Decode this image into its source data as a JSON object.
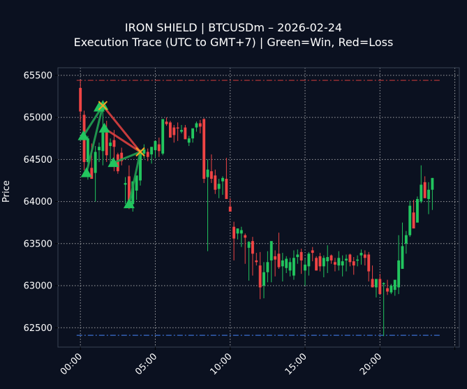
{
  "header": {
    "title_line1": "IRON SHIELD | BTCUSDm – 2026-02-24",
    "title_line2": "Execution Trace (UTC to GMT+7) | Green=Win, Red=Loss"
  },
  "colors": {
    "background": "#0b1120",
    "axes_border": "#3a4454",
    "grid": "#c8c8c8",
    "up": "#22c55e",
    "down": "#ef4444",
    "win_line": "#22a052",
    "loss_line": "#dc4040",
    "exit_marker": "#f5a623",
    "upper_level": "#c03838",
    "lower_level": "#3b6fd0",
    "text": "#ffffff"
  },
  "chart_data": {
    "type": "candlestick",
    "title": "IRON SHIELD | BTCUSDm – 2026-02-24",
    "subtitle": "Execution Trace (UTC to GMT+7) | Green=Win, Red=Loss",
    "xlabel": "",
    "ylabel": "Price",
    "ylim": [
      62270,
      65590
    ],
    "xlim_hours": [
      -1.5,
      25.3
    ],
    "x_ticks": [
      {
        "h": 0,
        "label": "00:00"
      },
      {
        "h": 5,
        "label": "05:00"
      },
      {
        "h": 10,
        "label": "10:00"
      },
      {
        "h": 15,
        "label": "15:00"
      },
      {
        "h": 20,
        "label": "20:00"
      }
    ],
    "y_ticks": [
      62500,
      63000,
      63500,
      64000,
      64500,
      65000,
      65500
    ],
    "grid": true,
    "reference_lines": [
      {
        "name": "upper-level",
        "price": 65440,
        "style": "dashdot",
        "color": "#c03838",
        "from_h": -0.25,
        "to_h": 24.0
      },
      {
        "name": "lower-level",
        "price": 62410,
        "style": "dashdot",
        "color": "#3b6fd0",
        "from_h": -0.25,
        "to_h": 24.0
      }
    ],
    "candle_interval_hours": 0.25,
    "candles_note": "[hour, open, high, low, close]",
    "candles": [
      [
        0.0,
        65350,
        65440,
        64960,
        65070
      ],
      [
        0.25,
        65030,
        65080,
        64370,
        64470
      ],
      [
        0.5,
        64470,
        64780,
        64260,
        64750
      ],
      [
        0.75,
        64400,
        64690,
        64320,
        64270
      ],
      [
        1.0,
        64340,
        64660,
        64000,
        64590
      ],
      [
        1.25,
        64610,
        64700,
        64470,
        64650
      ],
      [
        1.5,
        64600,
        65090,
        64430,
        64820
      ],
      [
        1.75,
        64820,
        64960,
        64470,
        64550
      ],
      [
        2.0,
        64660,
        64750,
        64460,
        64700
      ],
      [
        2.25,
        64730,
        64850,
        64360,
        64650
      ],
      [
        2.5,
        64560,
        64580,
        64330,
        64360
      ],
      [
        2.75,
        64580,
        64640,
        64430,
        64480
      ],
      [
        3.0,
        64200,
        64290,
        63970,
        64220
      ],
      [
        3.25,
        64300,
        64430,
        63910,
        63990
      ],
      [
        3.5,
        63970,
        64020,
        63880,
        64240
      ],
      [
        3.75,
        64130,
        64260,
        64020,
        64310
      ],
      [
        4.0,
        64250,
        64620,
        64190,
        64590
      ],
      [
        4.25,
        64570,
        64680,
        64510,
        64620
      ],
      [
        4.5,
        64590,
        64630,
        64480,
        64530
      ],
      [
        4.75,
        64560,
        64640,
        64450,
        64650
      ],
      [
        5.0,
        64610,
        64710,
        64520,
        64720
      ],
      [
        5.25,
        64680,
        64760,
        64530,
        64600
      ],
      [
        5.5,
        64570,
        64920,
        64550,
        64980
      ],
      [
        5.75,
        64950,
        65000,
        64900,
        64920
      ],
      [
        6.0,
        64940,
        64960,
        64780,
        64760
      ],
      [
        6.25,
        64880,
        64910,
        64700,
        64790
      ],
      [
        6.5,
        64880,
        64940,
        64720,
        64870
      ],
      [
        6.75,
        64830,
        64910,
        64810,
        64850
      ],
      [
        7.0,
        64880,
        64910,
        64800,
        64740
      ],
      [
        7.25,
        64700,
        64780,
        64660,
        64750
      ],
      [
        7.5,
        64750,
        64860,
        64700,
        64870
      ],
      [
        7.75,
        64880,
        64950,
        64830,
        64930
      ],
      [
        8.0,
        64930,
        64970,
        64810,
        64890
      ],
      [
        8.25,
        64980,
        64990,
        64220,
        64270
      ],
      [
        8.5,
        64290,
        64500,
        63410,
        64380
      ],
      [
        8.75,
        64360,
        64560,
        64220,
        64270
      ],
      [
        9.0,
        64310,
        64380,
        64090,
        64140
      ],
      [
        9.25,
        64150,
        64270,
        64040,
        64210
      ],
      [
        9.5,
        64240,
        64300,
        64080,
        64280
      ],
      [
        9.75,
        64270,
        64520,
        64140,
        64030
      ],
      [
        10.0,
        63940,
        64040,
        63920,
        63880
      ],
      [
        10.25,
        63700,
        63760,
        63300,
        63560
      ],
      [
        10.5,
        63620,
        63680,
        63550,
        63680
      ],
      [
        10.75,
        63620,
        63700,
        63460,
        63660
      ],
      [
        11.0,
        63600,
        63620,
        63260,
        63570
      ],
      [
        11.25,
        63450,
        63530,
        63060,
        63520
      ],
      [
        11.5,
        63530,
        63580,
        63120,
        63380
      ],
      [
        11.75,
        63300,
        63390,
        63240,
        63280
      ],
      [
        12.0,
        63240,
        63400,
        62840,
        62980
      ],
      [
        12.25,
        63000,
        63280,
        62850,
        63160
      ],
      [
        12.5,
        63160,
        63410,
        63040,
        63280
      ],
      [
        12.75,
        63300,
        63500,
        63040,
        63530
      ],
      [
        13.0,
        63350,
        63420,
        63110,
        63310
      ],
      [
        13.25,
        63380,
        63630,
        63200,
        63220
      ],
      [
        13.5,
        63230,
        63390,
        63050,
        63300
      ],
      [
        13.75,
        63210,
        63350,
        63150,
        63320
      ],
      [
        14.0,
        63180,
        63330,
        63110,
        63280
      ],
      [
        14.25,
        63120,
        63420,
        63070,
        63330
      ],
      [
        14.5,
        63340,
        63430,
        63260,
        63370
      ],
      [
        14.75,
        63400,
        63440,
        63140,
        63300
      ],
      [
        15.0,
        63180,
        63320,
        63000,
        63250
      ],
      [
        15.25,
        63230,
        63400,
        63120,
        63380
      ],
      [
        15.5,
        63420,
        63460,
        63290,
        63390
      ],
      [
        15.75,
        63330,
        63350,
        63180,
        63180
      ],
      [
        16.0,
        63350,
        63390,
        63170,
        63230
      ],
      [
        16.25,
        63230,
        63360,
        63100,
        63330
      ],
      [
        16.5,
        63290,
        63480,
        63150,
        63340
      ],
      [
        16.75,
        63360,
        63370,
        63260,
        63300
      ],
      [
        17.0,
        63280,
        63330,
        63170,
        63250
      ],
      [
        17.25,
        63240,
        63410,
        63180,
        63330
      ],
      [
        17.5,
        63240,
        63360,
        63110,
        63290
      ],
      [
        17.75,
        63300,
        63370,
        63170,
        63320
      ],
      [
        18.0,
        63370,
        63380,
        63230,
        63280
      ],
      [
        18.25,
        63290,
        63340,
        63130,
        63240
      ],
      [
        18.5,
        63300,
        63360,
        63230,
        63310
      ],
      [
        18.75,
        63360,
        63430,
        63250,
        63390
      ],
      [
        19.0,
        63370,
        63420,
        63240,
        63330
      ],
      [
        19.25,
        63370,
        63400,
        63050,
        63170
      ],
      [
        19.5,
        63080,
        63240,
        62980,
        62980
      ],
      [
        19.75,
        62980,
        63040,
        62860,
        63080
      ],
      [
        20.0,
        63080,
        63140,
        62920,
        62900
      ],
      [
        20.25,
        63030,
        63040,
        62400,
        63030
      ],
      [
        20.5,
        62970,
        63070,
        62890,
        62930
      ],
      [
        20.75,
        62920,
        63020,
        62900,
        63000
      ],
      [
        21.0,
        62950,
        63040,
        62880,
        63070
      ],
      [
        21.25,
        62980,
        63600,
        62900,
        63300
      ],
      [
        21.5,
        63200,
        63750,
        63200,
        63470
      ],
      [
        21.75,
        63500,
        63650,
        63380,
        63600
      ],
      [
        22.0,
        63600,
        64010,
        63580,
        63950
      ],
      [
        22.25,
        63870,
        64020,
        63700,
        63680
      ],
      [
        22.5,
        63750,
        64060,
        63750,
        64030
      ],
      [
        22.75,
        64000,
        64430,
        63980,
        64200
      ],
      [
        23.0,
        64230,
        64300,
        64040,
        64040
      ],
      [
        23.25,
        64030,
        64230,
        63850,
        64140
      ],
      [
        23.5,
        64140,
        64280,
        63900,
        64280
      ]
    ],
    "trades_note": "entries are triangles (long), exits are x markers; green=win, red=loss",
    "trades": [
      {
        "entry_h": 0.2,
        "entry_p": 64780,
        "exit_h": 1.5,
        "exit_p": 65140,
        "result": "win"
      },
      {
        "entry_h": 0.4,
        "entry_p": 64340,
        "exit_h": 1.5,
        "exit_p": 65140,
        "result": "win"
      },
      {
        "entry_h": 1.25,
        "entry_p": 65120,
        "exit_h": 1.5,
        "exit_p": 65140,
        "result": "win"
      },
      {
        "entry_h": 1.6,
        "entry_p": 64870,
        "exit_h": 4.0,
        "exit_p": 64590,
        "result": "loss"
      },
      {
        "entry_h": 1.5,
        "entry_p": 65140,
        "exit_h": 4.0,
        "exit_p": 64590,
        "result": "loss"
      },
      {
        "entry_h": 2.2,
        "entry_p": 64460,
        "exit_h": 4.0,
        "exit_p": 64590,
        "result": "win"
      },
      {
        "entry_h": 3.25,
        "entry_p": 63970,
        "exit_h": 4.0,
        "exit_p": 64590,
        "result": "win"
      }
    ],
    "exit_markers": [
      {
        "h": 1.5,
        "p": 65140
      },
      {
        "h": 4.0,
        "p": 64590
      }
    ]
  }
}
